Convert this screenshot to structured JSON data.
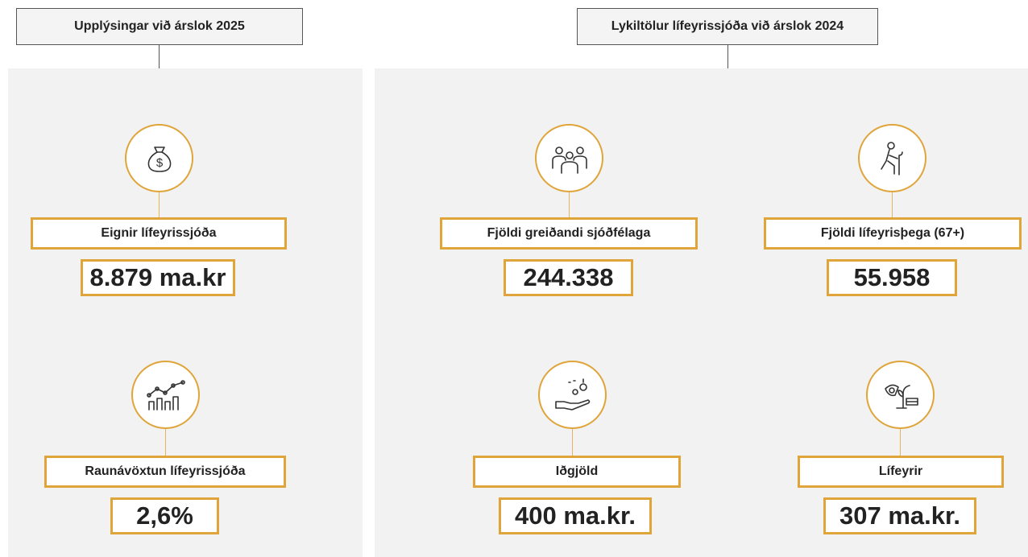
{
  "sections": [
    {
      "title": "Upplýsingar við árslok 2025",
      "items": [
        {
          "label": "Eignir lífeyrissjóða",
          "value": "8.879 ma.kr"
        },
        {
          "label": "Raunávöxtun lífeyrissjóða",
          "value": "2,6%"
        }
      ]
    },
    {
      "title": "Lykiltölur lífeyrissjóða við árslok 2024",
      "items": [
        {
          "label": "Fjöldi greiðandi sjóðfélaga",
          "value": "244.338"
        },
        {
          "label": "Fjöldi lífeyrisþega (67+)",
          "value": "55.958"
        },
        {
          "label": "Iðgjöld",
          "value": "400 ma.kr."
        },
        {
          "label": "Lífeyrir",
          "value": "307 ma.kr."
        }
      ]
    }
  ]
}
